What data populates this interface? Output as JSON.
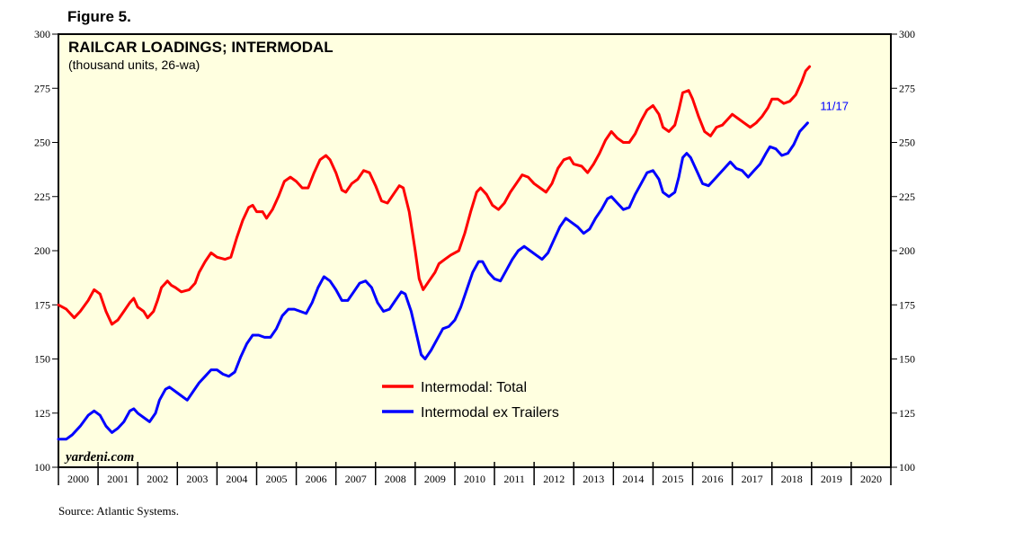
{
  "figure_label": "Figure 5.",
  "source": "Source: Atlantic Systems.",
  "watermark": "yardeni.com",
  "colors": {
    "plot_bg": "#ffffe0",
    "total": "#ff0000",
    "ex_trailers": "#0000ff",
    "annotation": "#0000ff"
  },
  "chart_data": {
    "type": "line",
    "title": "RAILCAR LOADINGS; INTERMODAL",
    "subtitle": "(thousand units, 26-wa)",
    "xlabel": "",
    "ylabel": "",
    "xlim": [
      2000,
      2021
    ],
    "ylim": [
      100,
      300
    ],
    "y_ticks": [
      100,
      125,
      150,
      175,
      200,
      225,
      250,
      275,
      300
    ],
    "x_tick_labels": [
      "2000",
      "2001",
      "2002",
      "2003",
      "2004",
      "2005",
      "2006",
      "2007",
      "2008",
      "2009",
      "2010",
      "2011",
      "2012",
      "2013",
      "2014",
      "2015",
      "2016",
      "2017",
      "2018",
      "2019",
      "2020"
    ],
    "legend_position": "center",
    "annotation": {
      "text": "11/17",
      "x": 2018.9,
      "y": 259
    },
    "series": [
      {
        "name": "Intermodal: Total",
        "color": "#ff0000",
        "points": [
          [
            2000.0,
            175
          ],
          [
            2000.2,
            173
          ],
          [
            2000.4,
            169
          ],
          [
            2000.55,
            172
          ],
          [
            2000.75,
            177
          ],
          [
            2000.9,
            182
          ],
          [
            2001.05,
            180
          ],
          [
            2001.2,
            172
          ],
          [
            2001.35,
            166
          ],
          [
            2001.5,
            168
          ],
          [
            2001.65,
            172
          ],
          [
            2001.8,
            176
          ],
          [
            2001.9,
            178
          ],
          [
            2002.0,
            174
          ],
          [
            2002.15,
            172
          ],
          [
            2002.25,
            169
          ],
          [
            2002.4,
            172
          ],
          [
            2002.5,
            177
          ],
          [
            2002.6,
            183
          ],
          [
            2002.75,
            186
          ],
          [
            2002.85,
            184
          ],
          [
            2002.95,
            183
          ],
          [
            2003.1,
            181
          ],
          [
            2003.3,
            182
          ],
          [
            2003.45,
            185
          ],
          [
            2003.55,
            190
          ],
          [
            2003.7,
            195
          ],
          [
            2003.85,
            199
          ],
          [
            2004.0,
            197
          ],
          [
            2004.2,
            196
          ],
          [
            2004.35,
            197
          ],
          [
            2004.5,
            206
          ],
          [
            2004.65,
            214
          ],
          [
            2004.8,
            220
          ],
          [
            2004.9,
            221
          ],
          [
            2005.0,
            218
          ],
          [
            2005.15,
            218
          ],
          [
            2005.25,
            215
          ],
          [
            2005.4,
            219
          ],
          [
            2005.55,
            225
          ],
          [
            2005.7,
            232
          ],
          [
            2005.85,
            234
          ],
          [
            2006.0,
            232
          ],
          [
            2006.15,
            229
          ],
          [
            2006.3,
            229
          ],
          [
            2006.45,
            236
          ],
          [
            2006.6,
            242
          ],
          [
            2006.75,
            244
          ],
          [
            2006.85,
            242
          ],
          [
            2007.0,
            236
          ],
          [
            2007.15,
            228
          ],
          [
            2007.25,
            227
          ],
          [
            2007.4,
            231
          ],
          [
            2007.55,
            233
          ],
          [
            2007.7,
            237
          ],
          [
            2007.85,
            236
          ],
          [
            2008.0,
            230
          ],
          [
            2008.15,
            223
          ],
          [
            2008.3,
            222
          ],
          [
            2008.45,
            226
          ],
          [
            2008.6,
            230
          ],
          [
            2008.7,
            229
          ],
          [
            2008.85,
            218
          ],
          [
            2009.0,
            200
          ],
          [
            2009.1,
            187
          ],
          [
            2009.2,
            182
          ],
          [
            2009.35,
            186
          ],
          [
            2009.5,
            190
          ],
          [
            2009.6,
            194
          ],
          [
            2009.75,
            196
          ],
          [
            2009.9,
            198
          ],
          [
            2010.1,
            200
          ],
          [
            2010.25,
            208
          ],
          [
            2010.4,
            218
          ],
          [
            2010.55,
            227
          ],
          [
            2010.65,
            229
          ],
          [
            2010.8,
            226
          ],
          [
            2010.95,
            221
          ],
          [
            2011.1,
            219
          ],
          [
            2011.25,
            222
          ],
          [
            2011.4,
            227
          ],
          [
            2011.55,
            231
          ],
          [
            2011.7,
            235
          ],
          [
            2011.85,
            234
          ],
          [
            2012.0,
            231
          ],
          [
            2012.15,
            229
          ],
          [
            2012.3,
            227
          ],
          [
            2012.45,
            231
          ],
          [
            2012.6,
            238
          ],
          [
            2012.75,
            242
          ],
          [
            2012.9,
            243
          ],
          [
            2013.0,
            240
          ],
          [
            2013.2,
            239
          ],
          [
            2013.35,
            236
          ],
          [
            2013.5,
            240
          ],
          [
            2013.65,
            245
          ],
          [
            2013.8,
            251
          ],
          [
            2013.95,
            255
          ],
          [
            2014.1,
            252
          ],
          [
            2014.25,
            250
          ],
          [
            2014.4,
            250
          ],
          [
            2014.55,
            254
          ],
          [
            2014.7,
            260
          ],
          [
            2014.85,
            265
          ],
          [
            2015.0,
            267
          ],
          [
            2015.15,
            263
          ],
          [
            2015.25,
            257
          ],
          [
            2015.4,
            255
          ],
          [
            2015.55,
            258
          ],
          [
            2015.65,
            265
          ],
          [
            2015.75,
            273
          ],
          [
            2015.9,
            274
          ],
          [
            2016.0,
            270
          ],
          [
            2016.15,
            262
          ],
          [
            2016.3,
            255
          ],
          [
            2016.45,
            253
          ],
          [
            2016.6,
            257
          ],
          [
            2016.75,
            258
          ],
          [
            2016.9,
            261
          ],
          [
            2017.0,
            263
          ],
          [
            2017.15,
            261
          ],
          [
            2017.3,
            259
          ],
          [
            2017.45,
            257
          ],
          [
            2017.6,
            259
          ],
          [
            2017.75,
            262
          ],
          [
            2017.9,
            266
          ],
          [
            2018.0,
            270
          ],
          [
            2018.15,
            270
          ],
          [
            2018.3,
            268
          ],
          [
            2018.45,
            269
          ],
          [
            2018.6,
            272
          ],
          [
            2018.75,
            278
          ],
          [
            2018.85,
            283
          ],
          [
            2018.95,
            285
          ]
        ]
      },
      {
        "name": "Intermodal ex Trailers",
        "color": "#0000ff",
        "points": [
          [
            2000.0,
            113
          ],
          [
            2000.2,
            113
          ],
          [
            2000.35,
            115
          ],
          [
            2000.55,
            119
          ],
          [
            2000.75,
            124
          ],
          [
            2000.9,
            126
          ],
          [
            2001.05,
            124
          ],
          [
            2001.2,
            119
          ],
          [
            2001.35,
            116
          ],
          [
            2001.5,
            118
          ],
          [
            2001.65,
            121
          ],
          [
            2001.8,
            126
          ],
          [
            2001.9,
            127
          ],
          [
            2002.0,
            125
          ],
          [
            2002.15,
            123
          ],
          [
            2002.3,
            121
          ],
          [
            2002.45,
            125
          ],
          [
            2002.55,
            131
          ],
          [
            2002.7,
            136
          ],
          [
            2002.8,
            137
          ],
          [
            2002.95,
            135
          ],
          [
            2003.1,
            133
          ],
          [
            2003.25,
            131
          ],
          [
            2003.4,
            135
          ],
          [
            2003.55,
            139
          ],
          [
            2003.7,
            142
          ],
          [
            2003.85,
            145
          ],
          [
            2004.0,
            145
          ],
          [
            2004.15,
            143
          ],
          [
            2004.3,
            142
          ],
          [
            2004.45,
            144
          ],
          [
            2004.6,
            151
          ],
          [
            2004.75,
            157
          ],
          [
            2004.9,
            161
          ],
          [
            2005.05,
            161
          ],
          [
            2005.2,
            160
          ],
          [
            2005.35,
            160
          ],
          [
            2005.5,
            164
          ],
          [
            2005.65,
            170
          ],
          [
            2005.8,
            173
          ],
          [
            2005.95,
            173
          ],
          [
            2006.1,
            172
          ],
          [
            2006.25,
            171
          ],
          [
            2006.4,
            176
          ],
          [
            2006.55,
            183
          ],
          [
            2006.7,
            188
          ],
          [
            2006.85,
            186
          ],
          [
            2007.0,
            182
          ],
          [
            2007.15,
            177
          ],
          [
            2007.3,
            177
          ],
          [
            2007.45,
            181
          ],
          [
            2007.6,
            185
          ],
          [
            2007.75,
            186
          ],
          [
            2007.9,
            183
          ],
          [
            2008.05,
            176
          ],
          [
            2008.2,
            172
          ],
          [
            2008.35,
            173
          ],
          [
            2008.5,
            177
          ],
          [
            2008.65,
            181
          ],
          [
            2008.75,
            180
          ],
          [
            2008.9,
            172
          ],
          [
            2009.05,
            160
          ],
          [
            2009.15,
            152
          ],
          [
            2009.25,
            150
          ],
          [
            2009.4,
            154
          ],
          [
            2009.55,
            159
          ],
          [
            2009.7,
            164
          ],
          [
            2009.85,
            165
          ],
          [
            2010.0,
            168
          ],
          [
            2010.15,
            174
          ],
          [
            2010.3,
            182
          ],
          [
            2010.45,
            190
          ],
          [
            2010.6,
            195
          ],
          [
            2010.7,
            195
          ],
          [
            2010.85,
            190
          ],
          [
            2011.0,
            187
          ],
          [
            2011.15,
            186
          ],
          [
            2011.3,
            191
          ],
          [
            2011.45,
            196
          ],
          [
            2011.6,
            200
          ],
          [
            2011.75,
            202
          ],
          [
            2011.9,
            200
          ],
          [
            2012.05,
            198
          ],
          [
            2012.2,
            196
          ],
          [
            2012.35,
            199
          ],
          [
            2012.5,
            205
          ],
          [
            2012.65,
            211
          ],
          [
            2012.8,
            215
          ],
          [
            2012.95,
            213
          ],
          [
            2013.1,
            211
          ],
          [
            2013.25,
            208
          ],
          [
            2013.4,
            210
          ],
          [
            2013.55,
            215
          ],
          [
            2013.7,
            219
          ],
          [
            2013.85,
            224
          ],
          [
            2013.95,
            225
          ],
          [
            2014.1,
            222
          ],
          [
            2014.25,
            219
          ],
          [
            2014.4,
            220
          ],
          [
            2014.55,
            226
          ],
          [
            2014.7,
            231
          ],
          [
            2014.85,
            236
          ],
          [
            2015.0,
            237
          ],
          [
            2015.15,
            233
          ],
          [
            2015.25,
            227
          ],
          [
            2015.4,
            225
          ],
          [
            2015.55,
            227
          ],
          [
            2015.65,
            234
          ],
          [
            2015.75,
            243
          ],
          [
            2015.85,
            245
          ],
          [
            2015.95,
            243
          ],
          [
            2016.1,
            237
          ],
          [
            2016.25,
            231
          ],
          [
            2016.4,
            230
          ],
          [
            2016.55,
            233
          ],
          [
            2016.7,
            236
          ],
          [
            2016.85,
            239
          ],
          [
            2016.95,
            241
          ],
          [
            2017.1,
            238
          ],
          [
            2017.25,
            237
          ],
          [
            2017.4,
            234
          ],
          [
            2017.55,
            237
          ],
          [
            2017.7,
            240
          ],
          [
            2017.85,
            245
          ],
          [
            2017.95,
            248
          ],
          [
            2018.1,
            247
          ],
          [
            2018.25,
            244
          ],
          [
            2018.4,
            245
          ],
          [
            2018.55,
            249
          ],
          [
            2018.7,
            255
          ],
          [
            2018.8,
            257
          ],
          [
            2018.9,
            259
          ]
        ]
      }
    ]
  }
}
